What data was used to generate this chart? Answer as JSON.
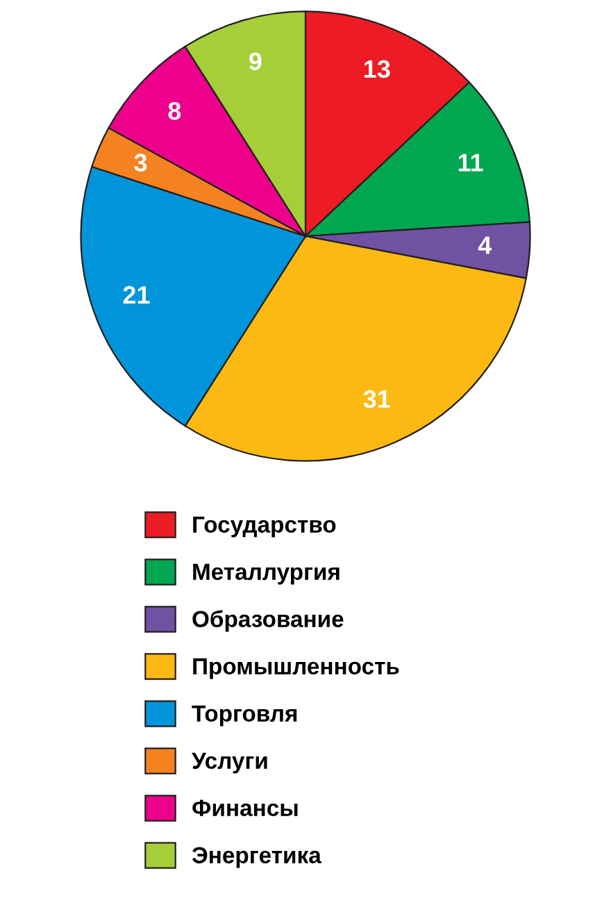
{
  "chart_data": {
    "type": "pie",
    "categories": [
      "Государство",
      "Металлургия",
      "Образование",
      "Промышленность",
      "Торговля",
      "Услуги",
      "Финансы",
      "Энергетика"
    ],
    "values": [
      13,
      11,
      4,
      31,
      21,
      3,
      8,
      9
    ],
    "colors": [
      "#ed1c24",
      "#00a650",
      "#7151a1",
      "#fdb913",
      "#0095da",
      "#f58220",
      "#ec008c",
      "#a6ce39"
    ],
    "data_labels": true,
    "legend": "bottom"
  }
}
